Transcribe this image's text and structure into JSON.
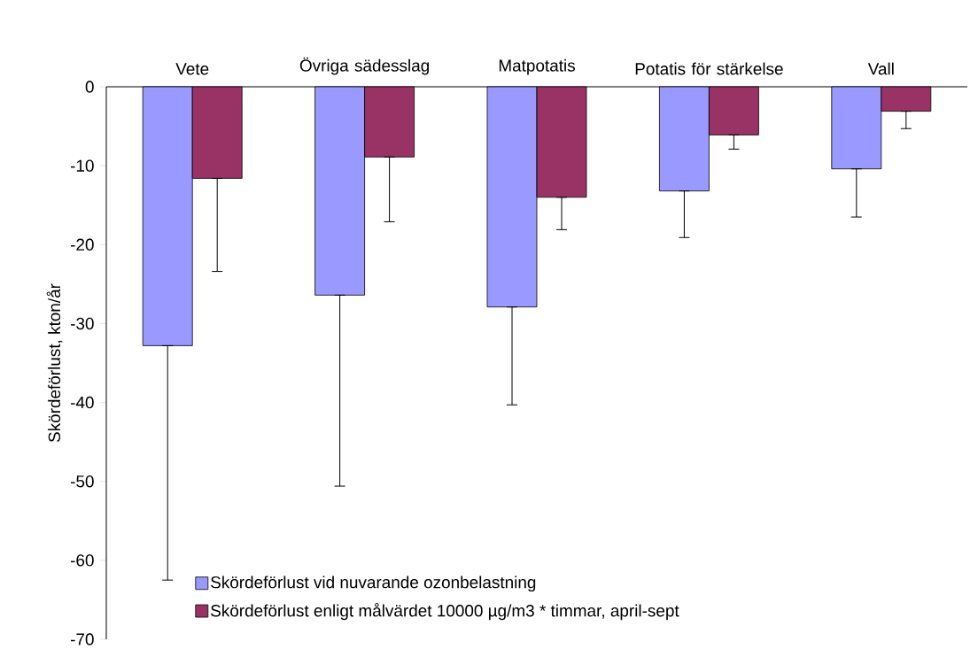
{
  "chart_data": {
    "type": "bar",
    "ylabel": "Skördeförlust, kton/år",
    "categories": [
      "Vete",
      "Övriga sädesslag",
      "Matpotatis",
      "Potatis för stärkelse",
      "Vall"
    ],
    "series": [
      {
        "name": "Skördeförlust vid nuvarande ozonbelastning",
        "color": "#9999ff",
        "values": [
          -32.8,
          -26.4,
          -27.9,
          -13.2,
          -10.4
        ],
        "errors": [
          [
            -62.5,
            -32.8
          ],
          [
            -50.6,
            -26.4
          ],
          [
            -40.3,
            -27.9
          ],
          [
            -19.1,
            -13.2
          ],
          [
            -16.5,
            -10.4
          ]
        ]
      },
      {
        "name": "Skördeförlust enligt målvärdet 10000 µg/m3 * timmar, april-sept",
        "color": "#993366",
        "values": [
          -11.6,
          -8.9,
          -14.0,
          -6.1,
          -3.1
        ],
        "errors": [
          [
            -23.4,
            -11.6
          ],
          [
            -17.1,
            -8.9
          ],
          [
            -18.1,
            -14.0
          ],
          [
            -7.9,
            -6.1
          ],
          [
            -5.3,
            -3.1
          ]
        ]
      }
    ],
    "ylim": [
      -70,
      0
    ],
    "yticks": [
      -70,
      -60,
      -50,
      -40,
      -30,
      -20,
      -10,
      0
    ],
    "grid": false,
    "legend": "bottom left"
  }
}
